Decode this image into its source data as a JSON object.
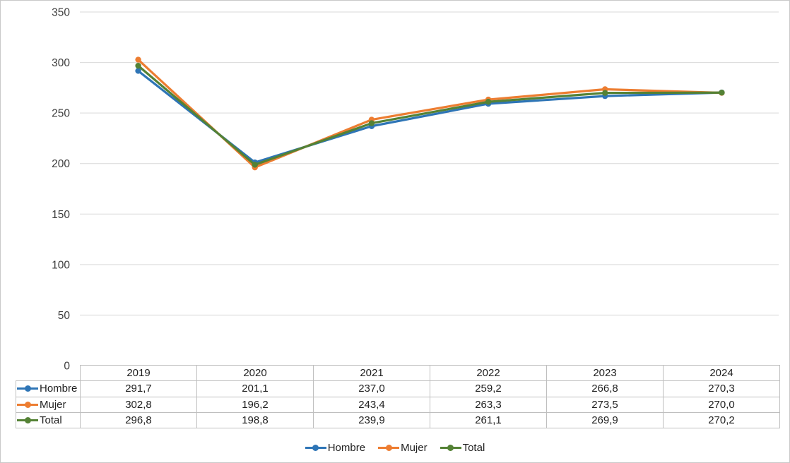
{
  "chart_data": {
    "type": "line",
    "x": [
      2019,
      2020,
      2021,
      2022,
      2023,
      2024
    ],
    "series": [
      {
        "name": "Hombre",
        "color": "#2E75B6",
        "values": [
          291.7,
          201.1,
          237.0,
          259.2,
          266.8,
          270.3
        ]
      },
      {
        "name": "Mujer",
        "color": "#ED7D31",
        "values": [
          302.8,
          196.2,
          243.4,
          263.3,
          273.5,
          270.0
        ]
      },
      {
        "name": "Total",
        "color": "#548235",
        "values": [
          296.8,
          198.8,
          239.9,
          261.1,
          269.9,
          270.2
        ]
      }
    ],
    "title": "",
    "xlabel": "",
    "ylabel": "",
    "ylim": [
      0,
      350
    ],
    "yticks": [
      0,
      50,
      100,
      150,
      200,
      250,
      300,
      350
    ],
    "grid": true,
    "gridline_color": "#d9d9d9",
    "legend_position": "bottom",
    "number_format": "decimal-comma",
    "marker": "circle"
  },
  "data_table": {
    "columns": [
      "2019",
      "2020",
      "2021",
      "2022",
      "2023",
      "2024"
    ],
    "rows": [
      {
        "label": "Hombre",
        "values": [
          "291,7",
          "201,1",
          "237,0",
          "259,2",
          "266,8",
          "270,3"
        ]
      },
      {
        "label": "Mujer",
        "values": [
          "302,8",
          "196,2",
          "243,4",
          "263,3",
          "273,5",
          "270,0"
        ]
      },
      {
        "label": "Total",
        "values": [
          "296,8",
          "198,8",
          "239,9",
          "261,1",
          "269,9",
          "270,2"
        ]
      }
    ]
  },
  "legend": {
    "items": [
      {
        "label": "Hombre"
      },
      {
        "label": "Mujer"
      },
      {
        "label": "Total"
      }
    ]
  },
  "colors": {
    "hombre": "#2E75B6",
    "mujer": "#ED7D31",
    "total": "#548235",
    "gridline": "#d9d9d9",
    "table_border": "#bfbfbf",
    "text": "#1f1f1f"
  }
}
